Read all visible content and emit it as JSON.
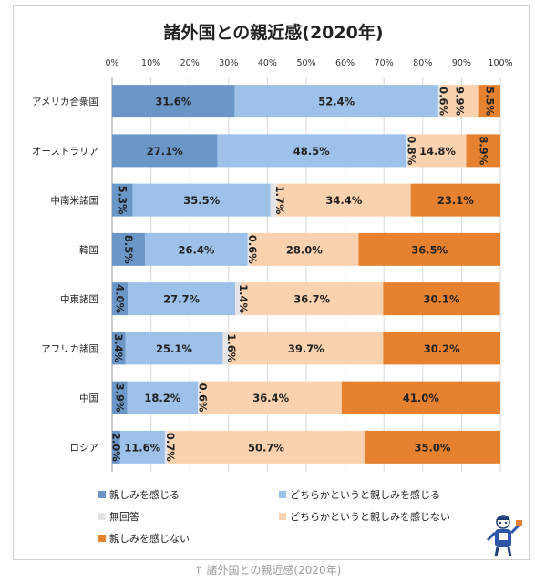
{
  "caption": "↑ 諸外国との親近感(2020年)",
  "chart_data": {
    "type": "bar",
    "orientation": "horizontal",
    "stacked": "percent",
    "title": "諸外国との親近感(2020年)",
    "xlim": [
      0,
      100
    ],
    "x_ticks": [
      "0%",
      "10%",
      "20%",
      "30%",
      "40%",
      "50%",
      "60%",
      "70%",
      "80%",
      "90%",
      "100%"
    ],
    "grid": true,
    "legend_position": "bottom",
    "categories": [
      "アメリカ合衆国",
      "オーストラリア",
      "中南米諸国",
      "韓国",
      "中東諸国",
      "アフリカ諸国",
      "中国",
      "ロシア"
    ],
    "series": [
      {
        "name": "親しみを感じる",
        "color": "#6b96c8",
        "values": [
          31.6,
          27.1,
          5.3,
          8.5,
          4.0,
          3.4,
          3.9,
          2.0
        ],
        "labels": [
          "31.6%",
          "27.1%",
          "5.3%",
          "8.5%",
          "4.0%",
          "3.4%",
          "3.9%",
          "2.0%"
        ]
      },
      {
        "name": "どちらかというと親しみを感じる",
        "color": "#9dc1e8",
        "values": [
          52.4,
          48.5,
          35.5,
          26.4,
          27.7,
          25.1,
          18.2,
          11.6
        ],
        "labels": [
          "52.4%",
          "48.5%",
          "35.5%",
          "26.4%",
          "27.7%",
          "25.1%",
          "18.2%",
          "11.6%"
        ]
      },
      {
        "name": "無回答",
        "color": "#e4e4e4",
        "values": [
          0.6,
          0.8,
          1.7,
          0.6,
          1.4,
          1.6,
          0.6,
          0.7
        ],
        "labels": [
          "0.6%",
          "0.8%",
          "1.7%",
          "0.6%",
          "1.4%",
          "1.6%",
          "0.6%",
          "0.7%"
        ]
      },
      {
        "name": "どちらかというと親しみを感じない",
        "color": "#fbd2b0",
        "values": [
          9.9,
          14.8,
          34.4,
          28.0,
          36.7,
          39.7,
          36.4,
          50.7
        ],
        "labels": [
          "9.9%",
          "14.8%",
          "34.4%",
          "28.0%",
          "36.7%",
          "39.7%",
          "36.4%",
          "50.7%"
        ]
      },
      {
        "name": "親しみを感じない",
        "color": "#e6822f",
        "values": [
          5.5,
          8.9,
          23.1,
          36.5,
          30.1,
          30.2,
          41.0,
          35.0
        ],
        "labels": [
          "5.5%",
          "8.9%",
          "23.1%",
          "36.5%",
          "30.1%",
          "30.2%",
          "41.0%",
          "35.0%"
        ]
      }
    ],
    "vertical_labels": [
      [
        false,
        false,
        true,
        true,
        true
      ],
      [
        false,
        false,
        true,
        false,
        true
      ],
      [
        true,
        false,
        true,
        false,
        false
      ],
      [
        true,
        false,
        true,
        false,
        false
      ],
      [
        true,
        false,
        true,
        false,
        false
      ],
      [
        true,
        false,
        true,
        false,
        false
      ],
      [
        true,
        false,
        true,
        false,
        false
      ],
      [
        true,
        false,
        true,
        false,
        false
      ]
    ]
  }
}
